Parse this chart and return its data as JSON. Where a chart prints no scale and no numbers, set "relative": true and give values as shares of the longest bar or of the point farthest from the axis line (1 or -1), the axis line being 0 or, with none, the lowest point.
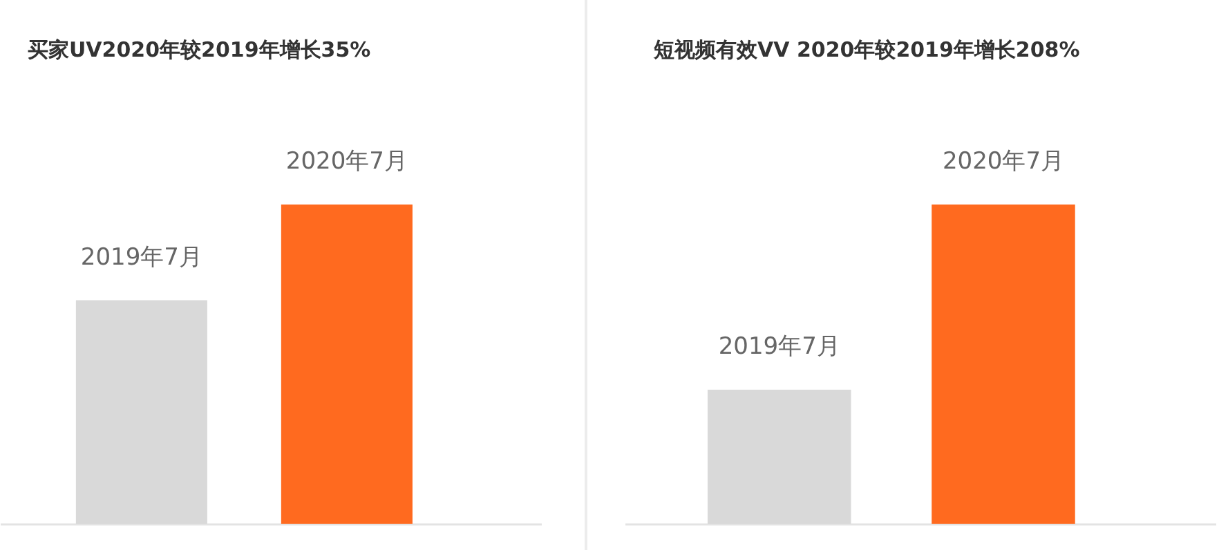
{
  "chart_data": [
    {
      "type": "bar",
      "title": "买家UV2020年较2019年增长35%",
      "categories": [
        "2019年7月",
        "2020年7月"
      ],
      "values": [
        0.7,
        1
      ],
      "colors": [
        "#d9d9d9",
        "#ff6a1f"
      ],
      "relative": true
    },
    {
      "type": "bar",
      "title": "短视频有效VV 2020年较2019年增长208%",
      "categories": [
        "2019年7月",
        "2020年7月"
      ],
      "values": [
        0.42,
        1
      ],
      "colors": [
        "#d9d9d9",
        "#ff6a1f"
      ],
      "relative": true
    }
  ]
}
